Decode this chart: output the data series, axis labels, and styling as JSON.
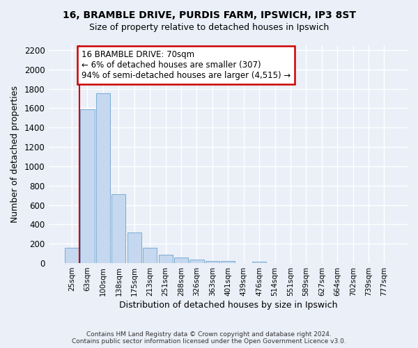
{
  "title_line1": "16, BRAMBLE DRIVE, PURDIS FARM, IPSWICH, IP3 8ST",
  "title_line2": "Size of property relative to detached houses in Ipswich",
  "xlabel": "Distribution of detached houses by size in Ipswich",
  "ylabel": "Number of detached properties",
  "categories": [
    "25sqm",
    "63sqm",
    "100sqm",
    "138sqm",
    "175sqm",
    "213sqm",
    "251sqm",
    "288sqm",
    "326sqm",
    "363sqm",
    "401sqm",
    "439sqm",
    "476sqm",
    "514sqm",
    "551sqm",
    "589sqm",
    "627sqm",
    "664sqm",
    "702sqm",
    "739sqm",
    "777sqm"
  ],
  "values": [
    158,
    1590,
    1755,
    710,
    315,
    160,
    88,
    55,
    35,
    23,
    20,
    0,
    18,
    0,
    0,
    0,
    0,
    0,
    0,
    0,
    0
  ],
  "bar_color": "#c5d8ef",
  "bar_edge_color": "#7aadd4",
  "vline_x": 0.5,
  "vline_color": "#cc0000",
  "annotation_text": "16 BRAMBLE DRIVE: 70sqm\n← 6% of detached houses are smaller (307)\n94% of semi-detached houses are larger (4,515) →",
  "annotation_box_color": "#ffffff",
  "annotation_box_edge": "#cc0000",
  "ylim": [
    0,
    2250
  ],
  "yticks": [
    0,
    200,
    400,
    600,
    800,
    1000,
    1200,
    1400,
    1600,
    1800,
    2000,
    2200
  ],
  "bg_color": "#eaeff8",
  "grid_color": "#ffffff",
  "footnote": "Contains HM Land Registry data © Crown copyright and database right 2024.\nContains public sector information licensed under the Open Government Licence v3.0."
}
